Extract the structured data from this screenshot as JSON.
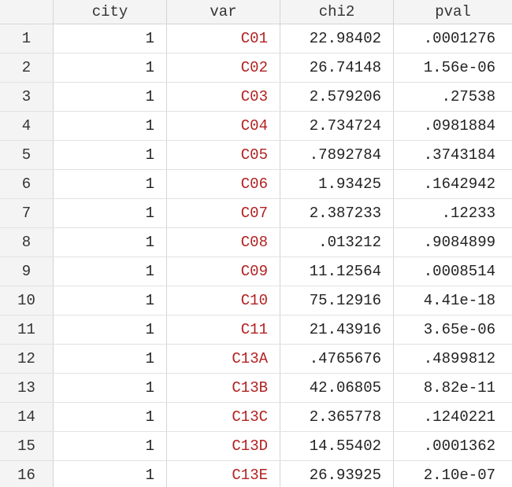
{
  "table": {
    "columns": [
      "city",
      "var",
      "chi2",
      "pval"
    ],
    "rows": [
      {
        "idx": "1",
        "city": "1",
        "var": "C01",
        "chi2": "22.98402",
        "pval": ".0001276"
      },
      {
        "idx": "2",
        "city": "1",
        "var": "C02",
        "chi2": "26.74148",
        "pval": "1.56e-06"
      },
      {
        "idx": "3",
        "city": "1",
        "var": "C03",
        "chi2": "2.579206",
        "pval": ".27538"
      },
      {
        "idx": "4",
        "city": "1",
        "var": "C04",
        "chi2": "2.734724",
        "pval": ".0981884"
      },
      {
        "idx": "5",
        "city": "1",
        "var": "C05",
        "chi2": ".7892784",
        "pval": ".3743184"
      },
      {
        "idx": "6",
        "city": "1",
        "var": "C06",
        "chi2": "1.93425",
        "pval": ".1642942"
      },
      {
        "idx": "7",
        "city": "1",
        "var": "C07",
        "chi2": "2.387233",
        "pval": ".12233"
      },
      {
        "idx": "8",
        "city": "1",
        "var": "C08",
        "chi2": ".013212",
        "pval": ".9084899"
      },
      {
        "idx": "9",
        "city": "1",
        "var": "C09",
        "chi2": "11.12564",
        "pval": ".0008514"
      },
      {
        "idx": "10",
        "city": "1",
        "var": "C10",
        "chi2": "75.12916",
        "pval": "4.41e-18"
      },
      {
        "idx": "11",
        "city": "1",
        "var": "C11",
        "chi2": "21.43916",
        "pval": "3.65e-06"
      },
      {
        "idx": "12",
        "city": "1",
        "var": "C13A",
        "chi2": ".4765676",
        "pval": ".4899812"
      },
      {
        "idx": "13",
        "city": "1",
        "var": "C13B",
        "chi2": "42.06805",
        "pval": "8.82e-11"
      },
      {
        "idx": "14",
        "city": "1",
        "var": "C13C",
        "chi2": "2.365778",
        "pval": ".1240221"
      },
      {
        "idx": "15",
        "city": "1",
        "var": "C13D",
        "chi2": "14.55402",
        "pval": ".0001362"
      },
      {
        "idx": "16",
        "city": "1",
        "var": "C13E",
        "chi2": "26.93925",
        "pval": "2.10e-07"
      }
    ]
  },
  "colors": {
    "string_text": "#b22222",
    "header_bg": "#f4f4f4",
    "grid_line": "#d4d4d4"
  }
}
